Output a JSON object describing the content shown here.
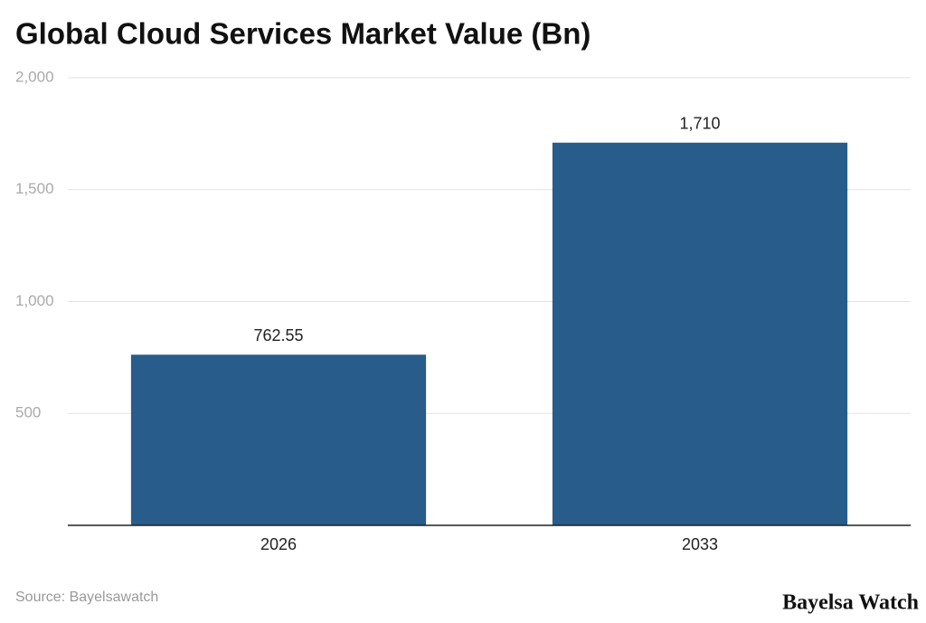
{
  "chart_data": {
    "type": "bar",
    "title": "Global Cloud Services Market Value (Bn)",
    "categories": [
      "2026",
      "2033"
    ],
    "values": [
      762.55,
      1710
    ],
    "value_labels": [
      "762.55",
      "1,710"
    ],
    "color": "#285c8b",
    "ylim": [
      0,
      2000
    ],
    "yticks": [
      500,
      {
        "value": 1000,
        "label": "1,000"
      },
      {
        "value": 1500,
        "label": "1,500"
      },
      {
        "value": 2000,
        "label": "2,000"
      }
    ],
    "grid": true,
    "source": "Source: Bayelsawatch",
    "brand": "Bayelsa Watch"
  }
}
